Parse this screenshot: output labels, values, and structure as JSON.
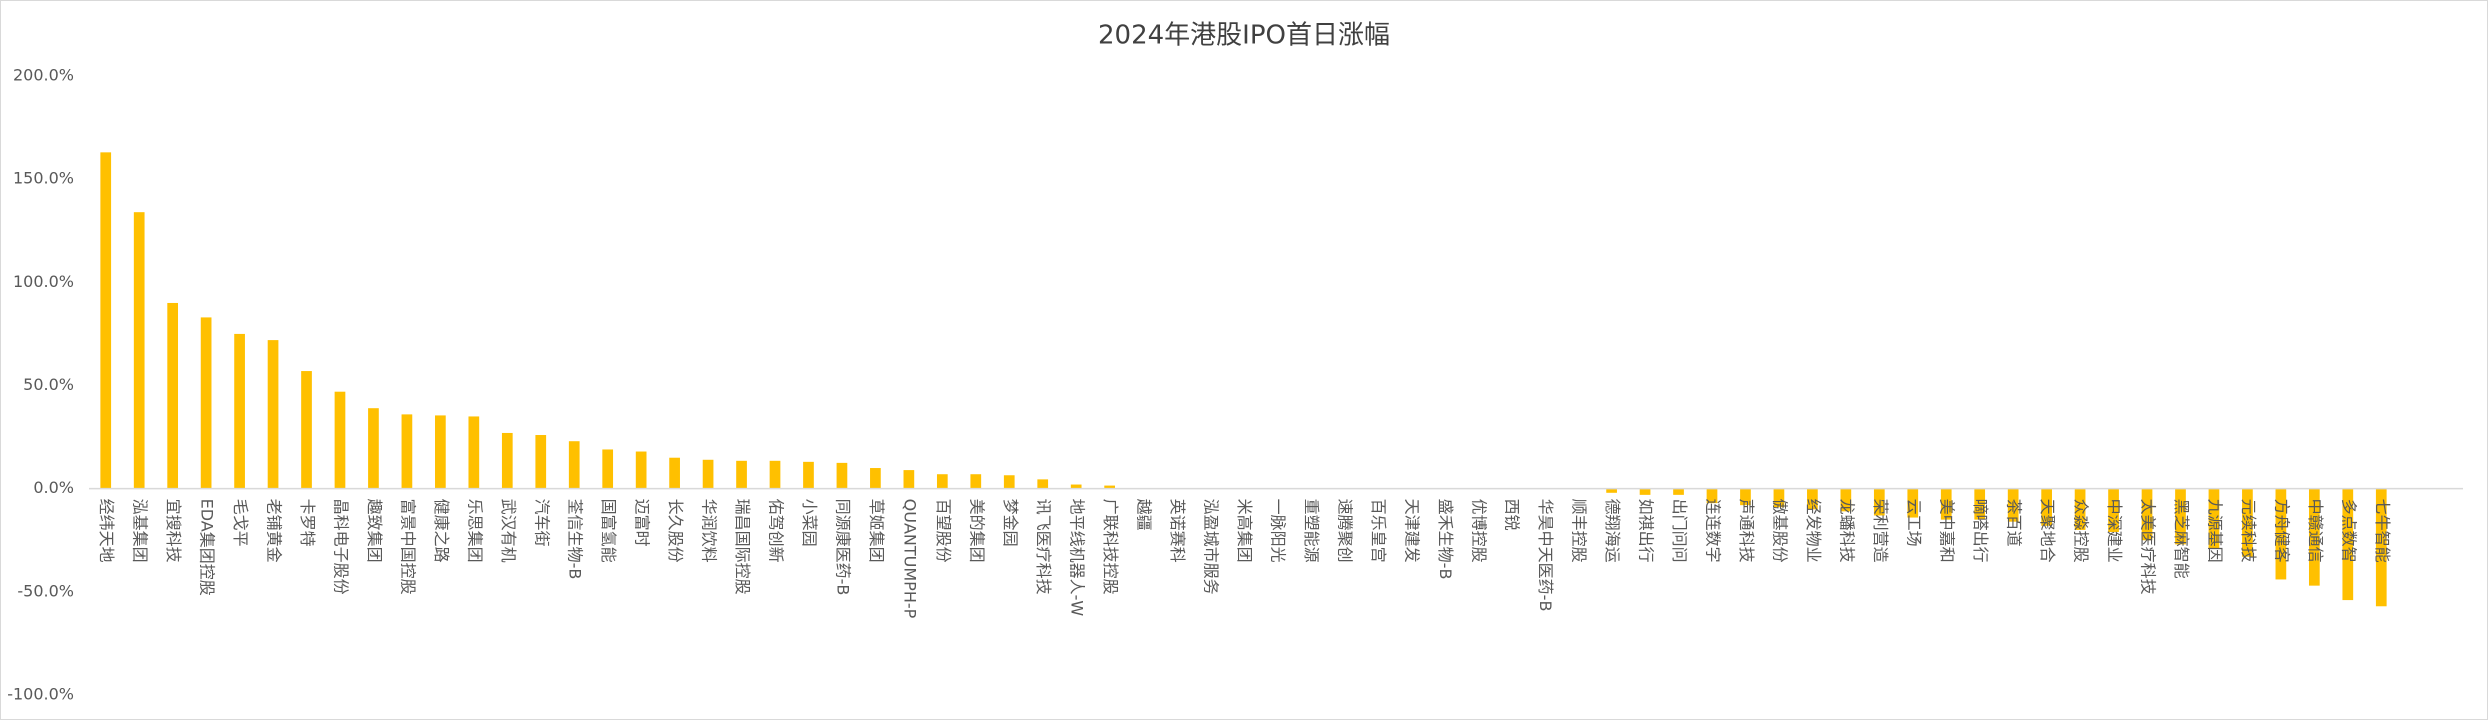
{
  "chart_data": {
    "type": "bar",
    "title": "2024年港股IPO首日涨幅",
    "color": "#ffc000",
    "grid": false,
    "categories": [
      "经纬天地",
      "泓基集团",
      "宜搜科技",
      "EDA集团控股",
      "毛戈平",
      "老铺黄金",
      "卡罗特",
      "晶科电子股份",
      "趣致集团",
      "富景中国控股",
      "健康之路",
      "乐思集团",
      "武汉有机",
      "汽车街",
      "荃信生物-B",
      "国富氢能",
      "迈富时",
      "长久股份",
      "华润饮料",
      "瑞昌国际控股",
      "佑驾创新",
      "小菜园",
      "同源康医药-B",
      "草姬集团",
      "QUANTUMPH-P",
      "百望股份",
      "美的集团",
      "梦金园",
      "讯飞医疗科技",
      "地平线机器人-W",
      "广联科技控股",
      "越疆",
      "英诺赛科",
      "泓盈城市服务",
      "米高集团",
      "一脉阳光",
      "重塑能源",
      "速腾聚创",
      "百乐皇宫",
      "天津建发",
      "盛禾生物-B",
      "优博控股",
      "西锐",
      "华昊中天医药-B",
      "顺丰控股",
      "德翔海运",
      "如祺出行",
      "出门问问",
      "连连数字",
      "声通科技",
      "傲基股份",
      "经发物业",
      "龙蟠科技",
      "荣利营造",
      "云工场",
      "美中嘉和",
      "嘀嗒出行",
      "茶百道",
      "天聚地合",
      "众淼控股",
      "中深建业",
      "太美医疗科技",
      "黑芝麻智能",
      "九源基因",
      "元续科技",
      "方舟健客",
      "中赣通信",
      "多点数智",
      "七牛智能"
    ],
    "values": [
      163,
      134,
      90,
      83,
      75,
      72,
      57,
      47,
      39,
      36,
      35.5,
      35,
      27,
      26,
      23,
      19,
      18,
      15,
      14,
      13.5,
      13.5,
      13,
      12.5,
      10,
      9,
      7,
      7,
      6.5,
      4.5,
      2,
      1.5,
      0,
      0,
      0,
      0,
      0,
      0,
      0,
      0,
      0,
      0,
      0,
      0,
      0,
      0,
      -2,
      -3,
      -3,
      -7,
      -8,
      -9,
      -10,
      -11,
      -13,
      -14,
      -15,
      -15,
      -16,
      -18,
      -20,
      -21,
      -25,
      -27,
      -29,
      -33,
      -44,
      -47,
      -54,
      -57
    ],
    "ylim": [
      -100,
      200
    ],
    "yticks": [
      {
        "value": -100,
        "label": "-100.0%"
      },
      {
        "value": -50,
        "label": "-50.0%"
      },
      {
        "value": 0,
        "label": "0.0%"
      },
      {
        "value": 50,
        "label": "50.0%"
      },
      {
        "value": 100,
        "label": "100.0%"
      },
      {
        "value": 150,
        "label": "150.0%"
      },
      {
        "value": 200,
        "label": "200.0%"
      }
    ]
  }
}
